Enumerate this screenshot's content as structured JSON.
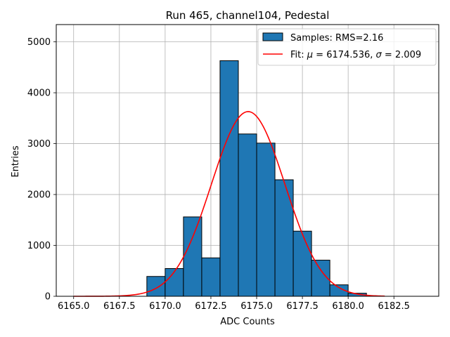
{
  "chart_data": {
    "type": "bar",
    "title": "Run 465, channel104, Pedestal",
    "xlabel": "ADC Counts",
    "ylabel": "Entries",
    "xlim": [
      6164.05,
      6184.95
    ],
    "ylim": [
      0,
      5340
    ],
    "xticks": [
      6165.0,
      6167.5,
      6170.0,
      6172.5,
      6175.0,
      6177.5,
      6180.0,
      6182.5
    ],
    "xtick_labels": [
      "6165.0",
      "6167.5",
      "6170.0",
      "6172.5",
      "6175.0",
      "6177.5",
      "6180.0",
      "6182.5"
    ],
    "yticks": [
      0,
      1000,
      2000,
      3000,
      4000,
      5000
    ],
    "ytick_labels": [
      "0",
      "1000",
      "2000",
      "3000",
      "4000",
      "5000"
    ],
    "grid": true,
    "legend_position": "top-right",
    "bar_color": "#1f77b4",
    "fit_color": "#ff0000",
    "bins": [
      {
        "x0": 6169,
        "x1": 6170,
        "value": 390
      },
      {
        "x0": 6170,
        "x1": 6171,
        "value": 545
      },
      {
        "x0": 6171,
        "x1": 6172,
        "value": 1560
      },
      {
        "x0": 6172,
        "x1": 6173,
        "value": 755
      },
      {
        "x0": 6173,
        "x1": 6174,
        "value": 4630
      },
      {
        "x0": 6174,
        "x1": 6175,
        "value": 3190
      },
      {
        "x0": 6175,
        "x1": 6176,
        "value": 3010
      },
      {
        "x0": 6176,
        "x1": 6177,
        "value": 2290
      },
      {
        "x0": 6177,
        "x1": 6178,
        "value": 1280
      },
      {
        "x0": 6178,
        "x1": 6179,
        "value": 710
      },
      {
        "x0": 6179,
        "x1": 6180,
        "value": 225
      },
      {
        "x0": 6180,
        "x1": 6181,
        "value": 60
      }
    ],
    "fit": {
      "mu": 6174.536,
      "sigma": 2.009,
      "amplitude": 3630,
      "x_range": [
        6165,
        6182
      ]
    },
    "legend": {
      "samples_label": "Samples: RMS=2.16",
      "fit_prefix": "Fit: ",
      "mu_symbol": "μ",
      "mu_text": " = 6174.536, ",
      "sigma_symbol": "σ",
      "sigma_text": " = 2.009"
    }
  }
}
